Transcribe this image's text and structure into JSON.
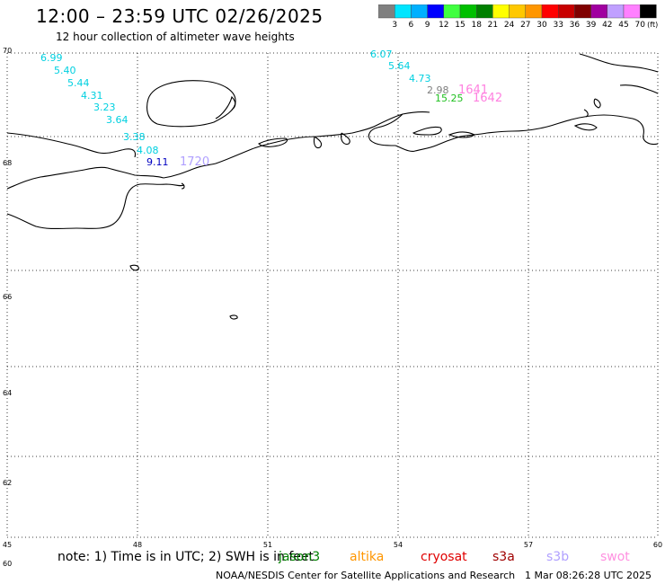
{
  "header": {
    "title": "12:00 – 23:59 UTC 02/26/2025",
    "subtitle": "12 hour collection of altimeter wave heights"
  },
  "colorbar": {
    "ticks": [
      "3",
      "6",
      "9",
      "12",
      "15",
      "18",
      "21",
      "24",
      "27",
      "30",
      "33",
      "36",
      "39",
      "42",
      "45",
      "70"
    ],
    "unit": "(ft)",
    "colors": [
      "#808080",
      "#00e5ff",
      "#00b0ff",
      "#0000ff",
      "#40ff40",
      "#00c000",
      "#008000",
      "#ffff00",
      "#ffc800",
      "#ff9600",
      "#ff0000",
      "#c80000",
      "#800000",
      "#a000a0",
      "#c0a0ff",
      "#ff80ff",
      "#000000"
    ]
  },
  "map": {
    "lat_labels": [
      "70",
      "68",
      "66",
      "64",
      "62",
      "60"
    ],
    "lon_labels": [
      "45",
      "48",
      "51",
      "54",
      "57",
      "60"
    ],
    "grid": true
  },
  "observations": [
    {
      "text": "6.99",
      "color": "#00d0e0"
    },
    {
      "text": "5.40",
      "color": "#00d0e0"
    },
    {
      "text": "5.44",
      "color": "#00d0e0"
    },
    {
      "text": "4.31",
      "color": "#00d0e0"
    },
    {
      "text": "3.23",
      "color": "#00d0e0"
    },
    {
      "text": "3.64",
      "color": "#00d0e0"
    },
    {
      "text": "3.38",
      "color": "#00d0e0"
    },
    {
      "text": "4.08",
      "color": "#00d0e0"
    },
    {
      "text": "9.11",
      "color": "#0000c0"
    },
    {
      "text": "1720",
      "color": "#b0a0ff"
    },
    {
      "text": "6.07",
      "color": "#00d0e0"
    },
    {
      "text": "5.64",
      "color": "#00d0e0"
    },
    {
      "text": "4.73",
      "color": "#00d0e0"
    },
    {
      "text": "2.98",
      "color": "#808080"
    },
    {
      "text": "1641",
      "color": "#ff80e0"
    },
    {
      "text": "15.25",
      "color": "#20c020"
    },
    {
      "text": "1642",
      "color": "#ff80e0"
    }
  ],
  "footer": {
    "note": "note: 1) Time is in UTC; 2) SWH is in feet",
    "legend": [
      {
        "label": "jason3",
        "color": "#008000"
      },
      {
        "label": "altika",
        "color": "#ff9600"
      },
      {
        "label": "cryosat",
        "color": "#e00000"
      },
      {
        "label": "s3a",
        "color": "#a00000"
      },
      {
        "label": "s3b",
        "color": "#b0a0ff"
      },
      {
        "label": "swot",
        "color": "#ff90e0"
      }
    ],
    "credit": "NOAA/NESDIS Center for Satellite Applications and Research",
    "timestamp": "1 Mar 08:26:28 UTC 2025"
  }
}
